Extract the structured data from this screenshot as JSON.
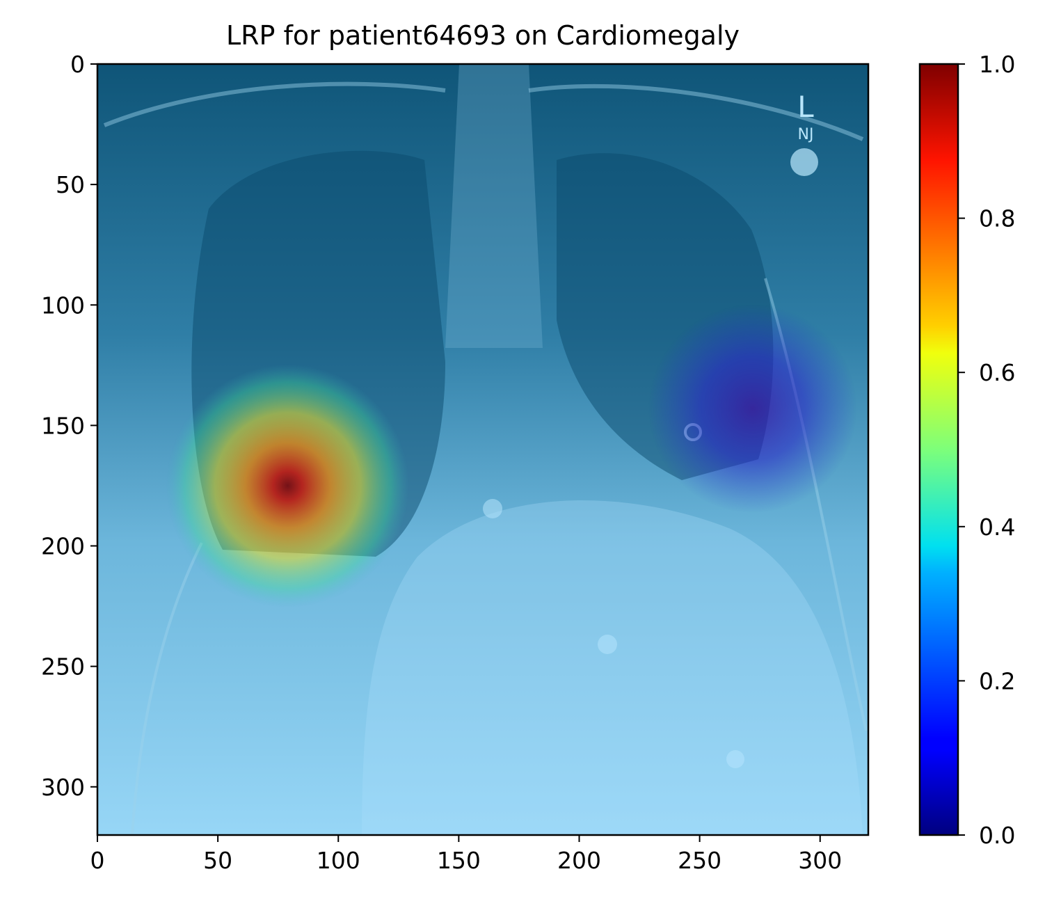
{
  "chart_data": {
    "type": "heatmap",
    "title": "LRP for patient64693 on Cardiomegaly",
    "xlabel": "",
    "ylabel": "",
    "xlim": [
      0,
      320
    ],
    "ylim": [
      320,
      0
    ],
    "x_ticks": [
      0,
      50,
      100,
      150,
      200,
      250,
      300
    ],
    "y_ticks": [
      0,
      50,
      100,
      150,
      200,
      250,
      300
    ],
    "x_tick_labels": [
      "0",
      "50",
      "100",
      "150",
      "200",
      "250",
      "300"
    ],
    "y_tick_labels": [
      "0",
      "50",
      "100",
      "150",
      "200",
      "250",
      "300"
    ],
    "grid": false,
    "background_image": "chest x-ray (frontal view) with semi-transparent heatmap overlay",
    "image_annotations": [
      "L",
      "NJ"
    ],
    "hotspots": [
      {
        "x": 79,
        "y": 175,
        "radius": 28,
        "value": 1.0
      },
      {
        "x": 272,
        "y": 143,
        "radius": 24,
        "value": 0.08
      }
    ],
    "colorbar": {
      "colormap": "jet",
      "range": [
        0.0,
        1.0
      ],
      "ticks": [
        0.0,
        0.2,
        0.4,
        0.6,
        0.8,
        1.0
      ],
      "tick_labels": [
        "0.0",
        "0.2",
        "0.4",
        "0.6",
        "0.8",
        "1.0"
      ]
    }
  }
}
